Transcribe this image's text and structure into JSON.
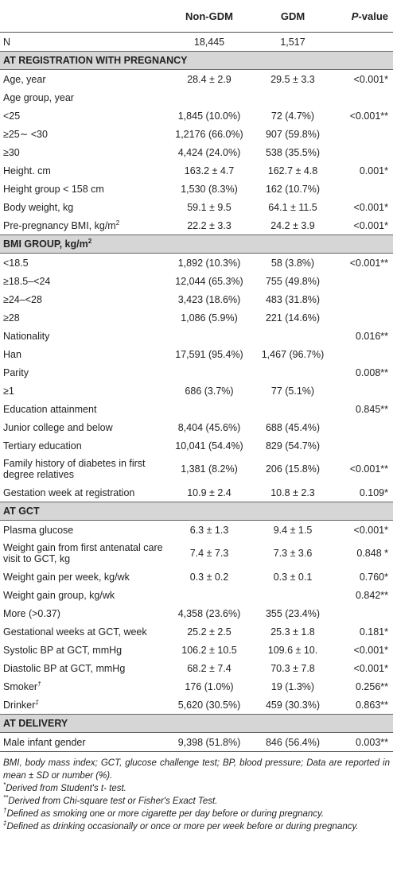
{
  "header": {
    "col_label": "",
    "col_non_gdm": "Non-GDM",
    "col_gdm": "GDM",
    "col_p_italic": "P",
    "col_p_rest": "-value"
  },
  "rows": [
    {
      "type": "row",
      "label": "N",
      "v1": "18,445",
      "v2": "1,517",
      "v3": ""
    },
    {
      "type": "section",
      "label": "AT REGISTRATION WITH PREGNANCY"
    },
    {
      "type": "row",
      "label": "Age, year",
      "v1": "28.4 ± 2.9",
      "v2": "29.5 ± 3.3",
      "v3": "<0.001*"
    },
    {
      "type": "row",
      "label": "Age group, year",
      "v1": "",
      "v2": "",
      "v3": ""
    },
    {
      "type": "row",
      "label": "<25",
      "v1": "1,845 (10.0%)",
      "v2": "72 (4.7%)",
      "v3": "<0.001**"
    },
    {
      "type": "row",
      "label": "≥25∼ <30",
      "v1": "1,2176 (66.0%)",
      "v2": "907 (59.8%)",
      "v3": ""
    },
    {
      "type": "row",
      "label": "≥30",
      "v1": "4,424 (24.0%)",
      "v2": "538 (35.5%)",
      "v3": ""
    },
    {
      "type": "row",
      "label": "Height. cm",
      "v1": "163.2 ± 4.7",
      "v2": "162.7 ± 4.8",
      "v3": "0.001*"
    },
    {
      "type": "row",
      "label": "Height group < 158 cm",
      "v1": "1,530 (8.3%)",
      "v2": "162 (10.7%)",
      "v3": ""
    },
    {
      "type": "row",
      "label": "Body weight, kg",
      "v1": "59.1 ± 9.5",
      "v2": "64.1 ± 11.5",
      "v3": "<0.001*"
    },
    {
      "type": "row",
      "label": "Pre-pregnancy BMI, kg/m",
      "sup": "2",
      "v1": "22.2 ± 3.3",
      "v2": "24.2 ± 3.9",
      "v3": "<0.001*"
    },
    {
      "type": "section",
      "label": "BMI GROUP, kg/m",
      "sup": "2"
    },
    {
      "type": "row",
      "label": "<18.5",
      "v1": "1,892 (10.3%)",
      "v2": "58 (3.8%)",
      "v3": "<0.001**"
    },
    {
      "type": "row",
      "label": "≥18.5–<24",
      "v1": "12,044 (65.3%)",
      "v2": "755 (49.8%)",
      "v3": ""
    },
    {
      "type": "row",
      "label": "≥24–<28",
      "v1": "3,423 (18.6%)",
      "v2": "483 (31.8%)",
      "v3": ""
    },
    {
      "type": "row",
      "label": "≥28",
      "v1": "1,086 (5.9%)",
      "v2": "221 (14.6%)",
      "v3": ""
    },
    {
      "type": "row",
      "label": "Nationality",
      "v1": "",
      "v2": "",
      "v3": "0.016**"
    },
    {
      "type": "row",
      "label": "Han",
      "v1": "17,591 (95.4%)",
      "v2": "1,467 (96.7%)",
      "v3": ""
    },
    {
      "type": "row",
      "label": "Parity",
      "v1": "",
      "v2": "",
      "v3": "0.008**"
    },
    {
      "type": "row",
      "label": "≥1",
      "v1": "686 (3.7%)",
      "v2": "77 (5.1%)",
      "v3": ""
    },
    {
      "type": "row",
      "label": "Education attainment",
      "v1": "",
      "v2": "",
      "v3": "0.845**"
    },
    {
      "type": "row",
      "label": "Junior college and below",
      "v1": "8,404 (45.6%)",
      "v2": "688 (45.4%)",
      "v3": ""
    },
    {
      "type": "row",
      "label": "Tertiary education",
      "v1": "10,041 (54.4%)",
      "v2": "829 (54.7%)",
      "v3": ""
    },
    {
      "type": "row",
      "tall": true,
      "label": "Family history of diabetes in first degree relatives",
      "v1": "1,381 (8.2%)",
      "v2": "206 (15.8%)",
      "v3": "<0.001**"
    },
    {
      "type": "row",
      "label": "Gestation week at registration",
      "v1": "10.9 ± 2.4",
      "v2": "10.8 ± 2.3",
      "v3": "0.109*"
    },
    {
      "type": "section",
      "label": "AT GCT"
    },
    {
      "type": "row",
      "label": "Plasma glucose",
      "v1": "6.3 ± 1.3",
      "v2": "9.4 ± 1.5",
      "v3": "<0.001*"
    },
    {
      "type": "row",
      "tall": true,
      "label": "Weight gain from first antenatal care visit to GCT, kg",
      "v1": "7.4 ± 7.3",
      "v2": "7.3 ± 3.6",
      "v3": "0.848 *"
    },
    {
      "type": "row",
      "label": "Weight gain per week, kg/wk",
      "v1": "0.3 ± 0.2",
      "v2": "0.3 ± 0.1",
      "v3": "0.760*"
    },
    {
      "type": "row",
      "label": "Weight gain group, kg/wk",
      "v1": "",
      "v2": "",
      "v3": "0.842**"
    },
    {
      "type": "row",
      "label": "More (>0.37)",
      "v1": "4,358 (23.6%)",
      "v2": "355 (23.4%)",
      "v3": ""
    },
    {
      "type": "row",
      "label": "Gestational weeks at GCT, week",
      "v1": "25.2 ± 2.5",
      "v2": "25.3 ± 1.8",
      "v3": "0.181*"
    },
    {
      "type": "row",
      "label": "Systolic BP at GCT, mmHg",
      "v1": "106.2 ± 10.5",
      "v2": "109.6 ± 10.",
      "v3": "<0.001*"
    },
    {
      "type": "row",
      "label": "Diastolic BP at GCT, mmHg",
      "v1": "68.2 ± 7.4",
      "v2": "70.3 ± 7.8",
      "v3": "<0.001*"
    },
    {
      "type": "row",
      "label": "Smoker",
      "sup": "†",
      "v1": "176 (1.0%)",
      "v2": "19 (1.3%)",
      "v3": "0.256**"
    },
    {
      "type": "row",
      "label": "Drinker",
      "sup": "‡",
      "v1": "5,620 (30.5%)",
      "v2": "459 (30.3%)",
      "v3": "0.863**"
    },
    {
      "type": "section",
      "label": "AT DELIVERY"
    },
    {
      "type": "row",
      "last": true,
      "label": "Male infant gender",
      "v1": "9,398 (51.8%)",
      "v2": "846 (56.4%)",
      "v3": "0.003**"
    }
  ],
  "footnotes": [
    {
      "mark": "",
      "text": "BMI, body mass index; GCT, glucose challenge test; BP, blood pressure; Data are reported in mean ± SD or number (%)."
    },
    {
      "mark": "*",
      "text": "Derived from Student's t- test."
    },
    {
      "mark": "**",
      "text": "Derived from Chi-square test or Fisher's Exact Test."
    },
    {
      "mark": "†",
      "text": "Defined as smoking one or more cigarette per day before or during pregnancy."
    },
    {
      "mark": "‡",
      "text": "Defined as drinking occasionally or once or more per week before or during pregnancy."
    }
  ]
}
